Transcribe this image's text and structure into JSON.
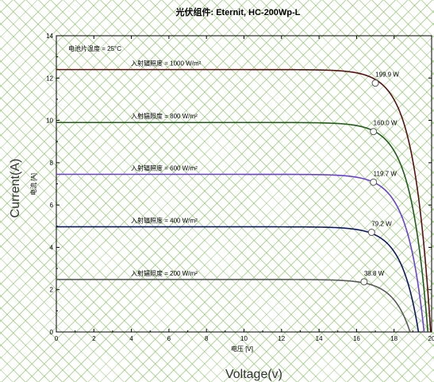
{
  "chart_data": {
    "type": "line",
    "title": "光伏组件: Eternit, HC-200Wp-L",
    "xlabel": "电压 [V]",
    "ylabel": "电流 [A]",
    "x_overlay_label": "Voltage(v)",
    "y_overlay_label": "Current(A)",
    "annotation": "电池片温度 = 25°C",
    "xlim": [
      0,
      20
    ],
    "ylim": [
      0,
      14
    ],
    "x_ticks": [
      "0",
      "2",
      "4",
      "6",
      "8",
      "10",
      "12",
      "14",
      "16",
      "18",
      "20"
    ],
    "y_ticks": [
      "0",
      "2",
      "4",
      "6",
      "8",
      "10",
      "12",
      "14"
    ],
    "series": [
      {
        "name": "入射辐照度 = 1000 W/m²",
        "isc": 12.4,
        "voc": 19.95,
        "mpp_v": 17.0,
        "mpp_i": 11.76,
        "mpp_label": "199.9 W",
        "color": "#5a0f0f"
      },
      {
        "name": "入射辐照度 = 800 W/m²",
        "isc": 9.9,
        "voc": 19.8,
        "mpp_v": 16.9,
        "mpp_i": 9.47,
        "mpp_label": "160.0 W",
        "color": "#1f5c16"
      },
      {
        "name": "入射辐照度 = 600 W/m²",
        "isc": 7.45,
        "voc": 19.6,
        "mpp_v": 16.9,
        "mpp_i": 7.08,
        "mpp_label": "119.7 W",
        "color": "#6a3fd8"
      },
      {
        "name": "入射辐照度 = 400 W/m²",
        "isc": 4.97,
        "voc": 19.3,
        "mpp_v": 16.8,
        "mpp_i": 4.71,
        "mpp_label": "79.2 W",
        "color": "#0c1666"
      },
      {
        "name": "入射辐照度 = 200 W/m²",
        "isc": 2.48,
        "voc": 18.85,
        "mpp_v": 16.4,
        "mpp_i": 2.37,
        "mpp_label": "38.8 W",
        "color": "#5a5a5a"
      }
    ]
  }
}
